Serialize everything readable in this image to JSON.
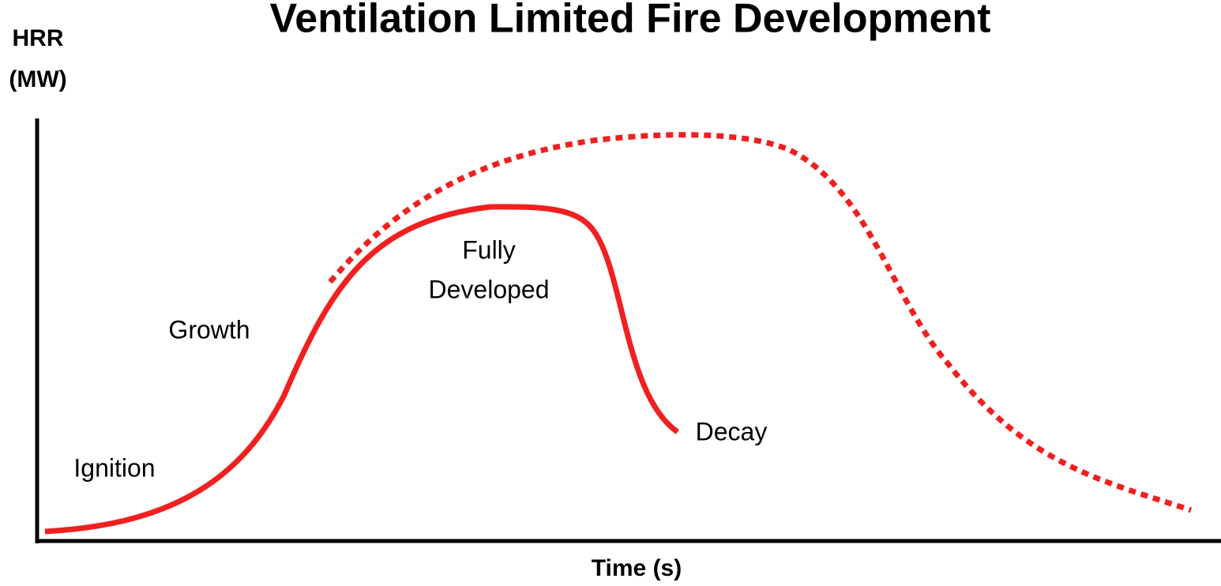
{
  "title": "Ventilation Limited Fire Development",
  "y_axis": {
    "lines": [
      "HRR",
      "(MW)"
    ]
  },
  "x_axis": {
    "label": "Time (s)"
  },
  "stages": {
    "ignition": "Ignition",
    "growth": "Growth",
    "fully_developed": [
      "Fully",
      "Developed"
    ],
    "decay": "Decay"
  }
}
